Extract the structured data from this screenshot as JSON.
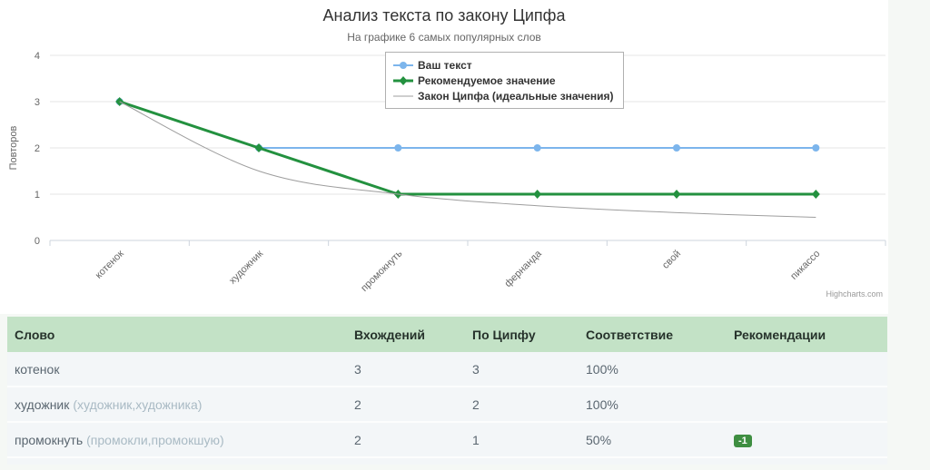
{
  "chart": {
    "title": "Анализ текста по закону Ципфа",
    "subtitle": "На графике 6 самых популярных слов",
    "credit": "Highcharts.com"
  },
  "chart_data": {
    "type": "line",
    "title": "Анализ текста по закону Ципфа",
    "subtitle": "На графике 6 самых популярных слов",
    "categories": [
      "котенок",
      "художник",
      "промокнуть",
      "фернанда",
      "свой",
      "пикассо"
    ],
    "series": [
      {
        "name": "Ваш текст",
        "values": [
          3,
          2,
          2,
          2,
          2,
          2
        ],
        "color": "#7cb5ec",
        "marker": "circle",
        "line_width": 2,
        "smooth": false
      },
      {
        "name": "Рекомендуемое значение",
        "values": [
          3,
          2,
          1,
          1,
          1,
          1
        ],
        "color": "#23913f",
        "marker": "diamond",
        "line_width": 3,
        "smooth": false
      },
      {
        "name": "Закон Ципфа (идеальные значения)",
        "values": [
          3,
          1.5,
          1,
          0.75,
          0.6,
          0.5
        ],
        "color": "#9e9e9e",
        "marker": "none",
        "line_width": 1,
        "smooth": true
      }
    ],
    "xlabel": "",
    "ylabel": "Повторов",
    "ylim": [
      0,
      4
    ],
    "yticks": [
      0,
      1,
      2,
      3,
      4
    ],
    "grid": true,
    "legend_position": "top-center"
  },
  "table": {
    "headers": [
      "Слово",
      "Вхождений",
      "По Ципфу",
      "Соответствие",
      "Рекомендации"
    ],
    "rows": [
      {
        "word": "котенок",
        "forms": "",
        "occurrences": "3",
        "zipf": "3",
        "match": "100%",
        "recommendation": ""
      },
      {
        "word": "художник",
        "forms": "(художник,художника)",
        "occurrences": "2",
        "zipf": "2",
        "match": "100%",
        "recommendation": ""
      },
      {
        "word": "промокнуть",
        "forms": "(промокли,промокшую)",
        "occurrences": "2",
        "zipf": "1",
        "match": "50%",
        "recommendation": "-1"
      }
    ]
  },
  "colors": {
    "page_background": "#f5f8f5",
    "card_background": "#ffffff",
    "table_header_background": "#c3e2c6",
    "table_row_background": "#f3f6f8",
    "badge_background": "#3e8e41",
    "series_blue": "#7cb5ec",
    "series_green": "#23913f",
    "series_gray": "#9e9e9e",
    "gridline": "#e6e6e6",
    "axis_text": "#666666"
  }
}
